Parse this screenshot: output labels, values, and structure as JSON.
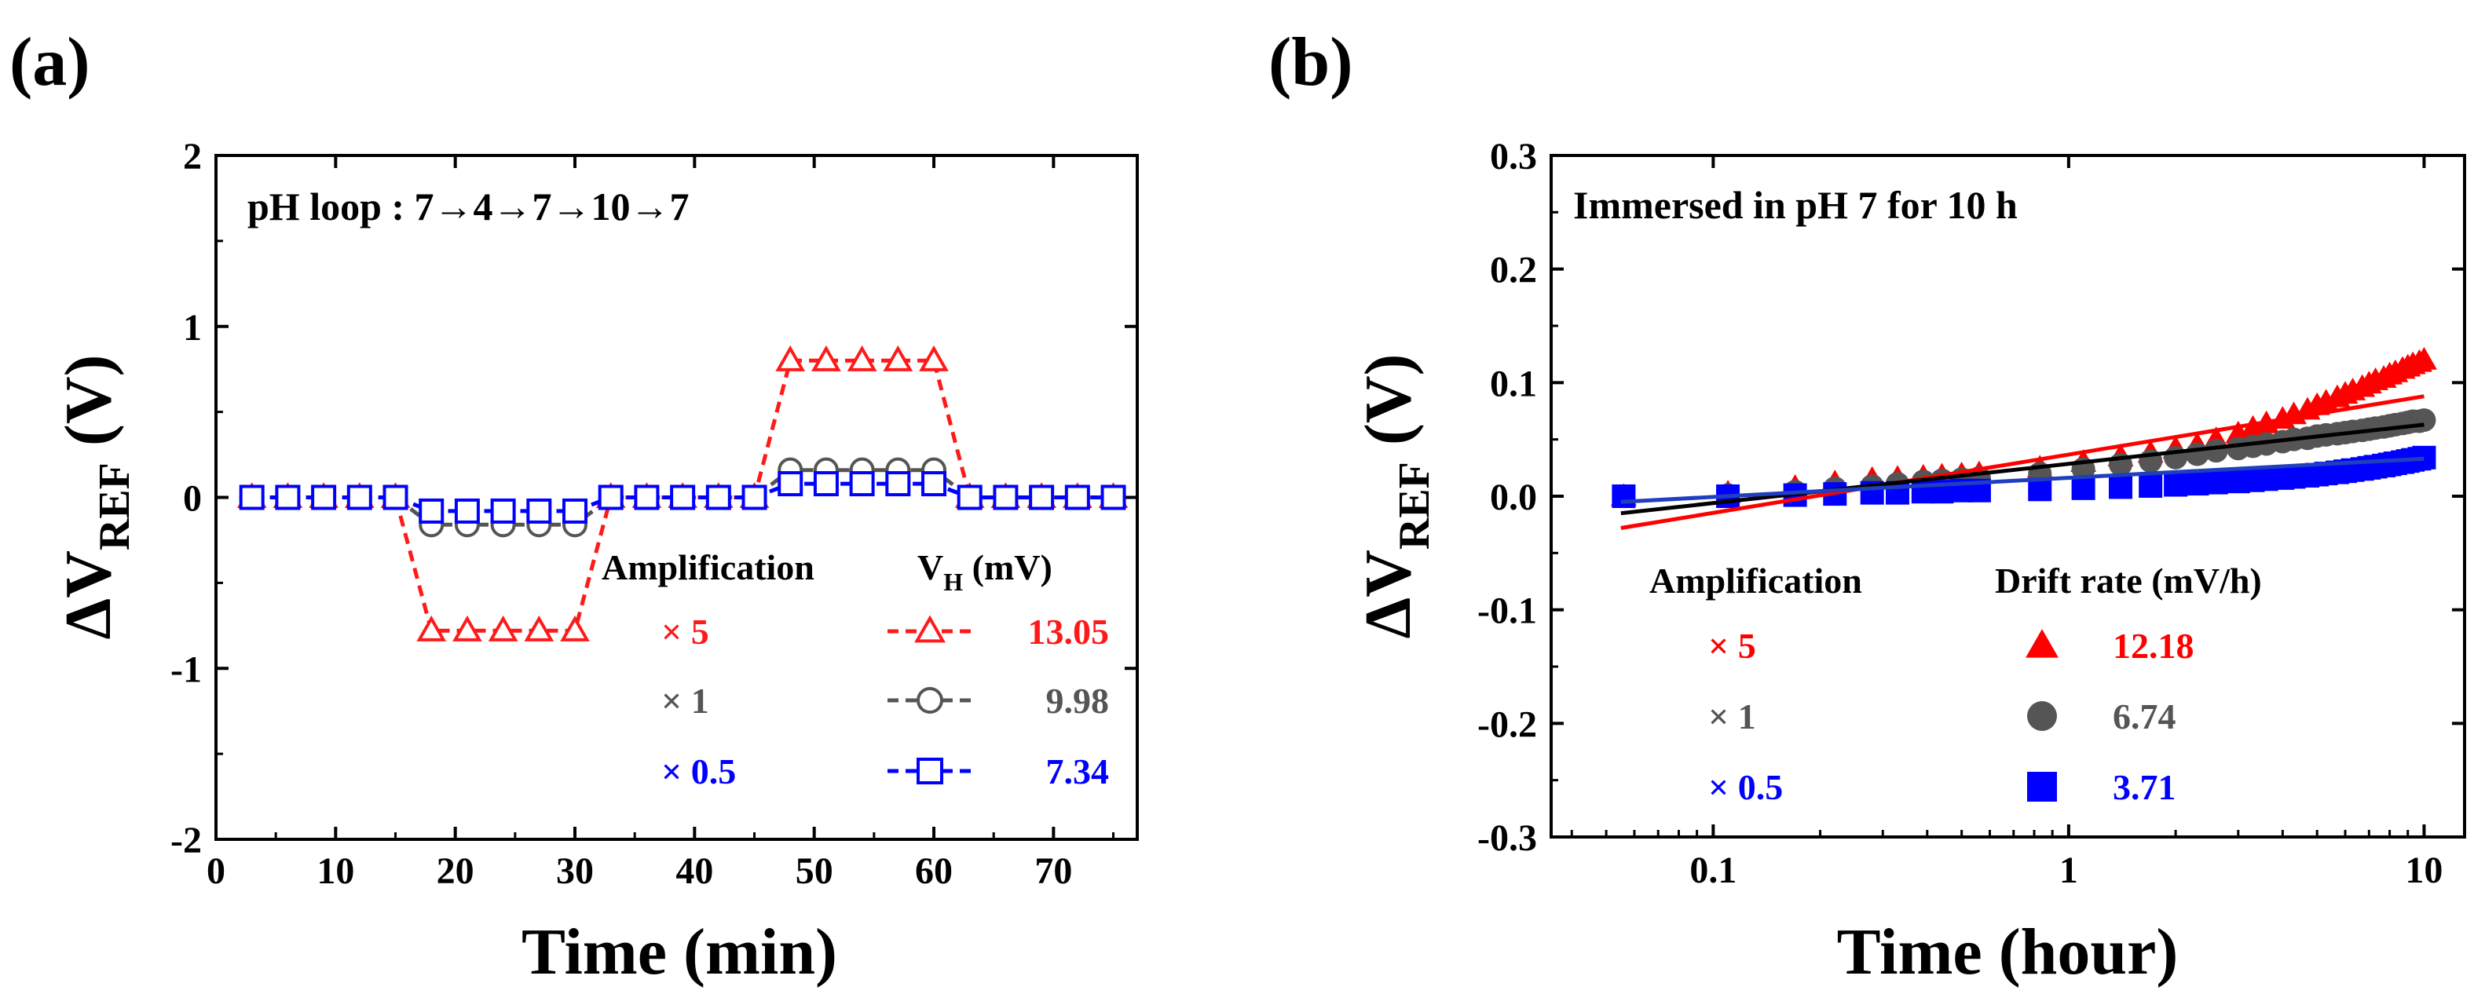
{
  "chart_data": [
    {
      "panel": "(a)",
      "type": "line",
      "annotation": "pH loop : 7→4→7→10→7",
      "xlabel": "Time (min)",
      "ylabel_main": "ΔV",
      "ylabel_sub": "REF",
      "ylabel_unit": " (V)",
      "xlim": [
        0,
        77
      ],
      "ylim": [
        -2,
        2
      ],
      "xticks": [
        "0",
        "10",
        "20",
        "30",
        "40",
        "50",
        "60",
        "70"
      ],
      "xtick_values": [
        0,
        10,
        20,
        30,
        40,
        50,
        60,
        70
      ],
      "yticks": [
        "-2",
        "-1",
        "0",
        "1",
        "2"
      ],
      "ytick_values": [
        -2,
        -1,
        0,
        1,
        2
      ],
      "grid": false,
      "x": [
        3,
        6,
        9,
        12,
        15,
        18,
        21,
        24,
        27,
        30,
        33,
        36,
        39,
        42,
        45,
        48,
        51,
        54,
        57,
        60,
        63,
        66,
        69,
        72,
        75
      ],
      "series": [
        {
          "name": "× 5",
          "marker": "triangle-open",
          "color": "#ff1a1a",
          "value_label": "13.05",
          "values": [
            0,
            0,
            0,
            0,
            0,
            -0.78,
            -0.78,
            -0.78,
            -0.78,
            -0.78,
            0,
            0,
            0,
            0,
            0,
            0.8,
            0.8,
            0.8,
            0.8,
            0.8,
            0,
            0,
            0,
            0,
            0
          ]
        },
        {
          "name": "× 1",
          "marker": "circle-open",
          "color": "#555555",
          "value_label": "9.98",
          "values": [
            0,
            0,
            0,
            0,
            0,
            -0.16,
            -0.16,
            -0.16,
            -0.16,
            -0.16,
            0,
            0,
            0,
            0,
            0,
            0.16,
            0.16,
            0.16,
            0.16,
            0.16,
            0,
            0,
            0,
            0,
            0
          ]
        },
        {
          "name": "× 0.5",
          "marker": "square-open",
          "color": "#0000ff",
          "value_label": "7.34",
          "values": [
            0,
            0,
            0,
            0,
            0,
            -0.08,
            -0.08,
            -0.08,
            -0.08,
            -0.08,
            0,
            0,
            0,
            0,
            0,
            0.08,
            0.08,
            0.08,
            0.08,
            0.08,
            0,
            0,
            0,
            0,
            0
          ]
        }
      ],
      "legend": {
        "header_left": "Amplification",
        "header_right_main": "V",
        "header_right_sub": "H",
        "header_right_unit": " (mV)",
        "placement": "bottom-right"
      }
    },
    {
      "panel": "(b)",
      "type": "scatter",
      "annotation": "Immersed in pH 7 for 10 h",
      "xlabel": "Time (hour)",
      "ylabel_main": "ΔV",
      "ylabel_sub": "REF",
      "ylabel_unit": " (V)",
      "xscale": "log",
      "xlim": [
        0.035,
        13
      ],
      "ylim": [
        -0.3,
        0.3
      ],
      "xticks": [
        "0.1",
        "1",
        "10"
      ],
      "xtick_values": [
        0.1,
        1,
        10
      ],
      "yticks": [
        "-0.3",
        "-0.2",
        "-0.1",
        "0.0",
        "0.1",
        "0.2",
        "0.3"
      ],
      "ytick_values": [
        -0.3,
        -0.2,
        -0.1,
        0.0,
        0.1,
        0.2,
        0.3
      ],
      "grid": false,
      "series": [
        {
          "name": "× 5",
          "marker": "triangle-filled",
          "color": "#ff0000",
          "value_label": "12.18",
          "fit": {
            "x": [
              0.055,
              10
            ],
            "y": [
              -0.028,
              0.088
            ]
          },
          "x": [
            0.056,
            0.11,
            0.17,
            0.22,
            0.28,
            0.33,
            0.39,
            0.44,
            0.5,
            0.56,
            0.83,
            1.1,
            1.4,
            1.7,
            2.0,
            2.3,
            2.6,
            3.0,
            3.3,
            3.6,
            4.0,
            4.3,
            4.7,
            5.0,
            5.3,
            5.7,
            6.0,
            6.3,
            6.7,
            7.0,
            7.3,
            7.7,
            8.0,
            8.3,
            8.7,
            9.0,
            9.3,
            9.7,
            10.0
          ],
          "values": [
            0.0,
            0.003,
            0.008,
            0.012,
            0.015,
            0.016,
            0.017,
            0.018,
            0.019,
            0.02,
            0.025,
            0.03,
            0.035,
            0.038,
            0.042,
            0.045,
            0.05,
            0.055,
            0.06,
            0.064,
            0.068,
            0.072,
            0.076,
            0.08,
            0.083,
            0.087,
            0.09,
            0.093,
            0.096,
            0.099,
            0.102,
            0.104,
            0.107,
            0.109,
            0.112,
            0.114,
            0.116,
            0.118,
            0.12
          ]
        },
        {
          "name": "× 1",
          "marker": "circle-filled",
          "color": "#555555",
          "value_label": "6.74",
          "fit": {
            "x": [
              0.055,
              10
            ],
            "y": [
              -0.015,
              0.063
            ]
          },
          "x": [
            0.056,
            0.11,
            0.17,
            0.22,
            0.28,
            0.33,
            0.39,
            0.44,
            0.5,
            0.56,
            0.83,
            1.1,
            1.4,
            1.7,
            2.0,
            2.3,
            2.6,
            3.0,
            3.3,
            3.6,
            4.0,
            4.3,
            4.7,
            5.0,
            5.3,
            5.7,
            6.0,
            6.3,
            6.7,
            7.0,
            7.3,
            7.7,
            8.0,
            8.3,
            8.7,
            9.0,
            9.3,
            9.7,
            10.0
          ],
          "values": [
            0.0,
            0.001,
            0.004,
            0.007,
            0.009,
            0.011,
            0.013,
            0.014,
            0.015,
            0.016,
            0.02,
            0.024,
            0.028,
            0.031,
            0.034,
            0.037,
            0.04,
            0.042,
            0.044,
            0.046,
            0.048,
            0.05,
            0.051,
            0.053,
            0.054,
            0.055,
            0.056,
            0.057,
            0.058,
            0.059,
            0.06,
            0.061,
            0.062,
            0.063,
            0.064,
            0.065,
            0.066,
            0.066,
            0.067
          ]
        },
        {
          "name": "× 0.5",
          "marker": "square-filled",
          "color": "#0000ff",
          "value_label": "3.71",
          "fit": {
            "x": [
              0.055,
              10
            ],
            "y": [
              -0.005,
              0.033
            ]
          },
          "x": [
            0.056,
            0.11,
            0.17,
            0.22,
            0.28,
            0.33,
            0.39,
            0.44,
            0.5,
            0.56,
            0.83,
            1.1,
            1.4,
            1.7,
            2.0,
            2.3,
            2.6,
            3.0,
            3.3,
            3.6,
            4.0,
            4.3,
            4.7,
            5.0,
            5.3,
            5.7,
            6.0,
            6.3,
            6.7,
            7.0,
            7.3,
            7.7,
            8.0,
            8.3,
            8.7,
            9.0,
            9.3,
            9.7,
            10.0
          ],
          "values": [
            0.0,
            0.0,
            0.001,
            0.002,
            0.003,
            0.003,
            0.004,
            0.004,
            0.005,
            0.005,
            0.006,
            0.007,
            0.008,
            0.009,
            0.01,
            0.011,
            0.012,
            0.013,
            0.014,
            0.015,
            0.016,
            0.017,
            0.018,
            0.019,
            0.02,
            0.021,
            0.022,
            0.023,
            0.024,
            0.025,
            0.026,
            0.027,
            0.028,
            0.029,
            0.03,
            0.031,
            0.032,
            0.033,
            0.034
          ]
        }
      ],
      "legend": {
        "header_left": "Amplification",
        "header_right": "Drift rate (mV/h)",
        "placement": "bottom-right"
      }
    }
  ]
}
